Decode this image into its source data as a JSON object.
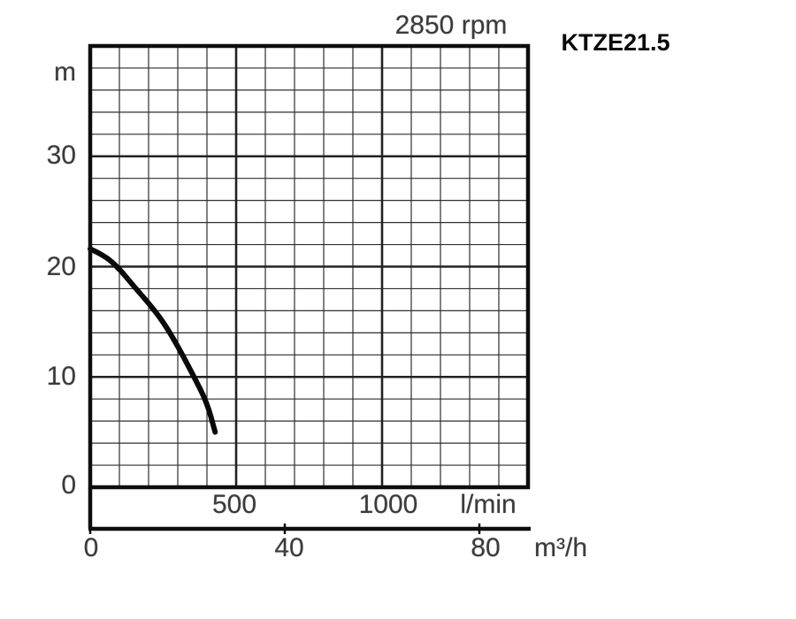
{
  "chart_data": {
    "type": "line",
    "title": "2850 rpm",
    "series_label": "KTZE21.5",
    "x_axis_primary": {
      "unit": "l/min",
      "min": 0,
      "max": 1500,
      "minor_step": 100,
      "major_tick_values": [
        500,
        1000
      ],
      "tick_labels": [
        "500",
        "1000"
      ]
    },
    "x_axis_secondary": {
      "unit": "m³/h",
      "tick_values": [
        0,
        40,
        80
      ],
      "tick_labels": [
        "0",
        "40",
        "80"
      ]
    },
    "y_axis": {
      "unit": "m",
      "min": 0,
      "max": 40,
      "minor_step": 2,
      "major_tick_values": [
        10,
        20,
        30
      ],
      "tick_labels": [
        "0",
        "10",
        "20",
        "30"
      ]
    },
    "grid": true,
    "legend_position": "none",
    "curve": {
      "name": "head-flow-curve",
      "x_unit": "l/min",
      "y_unit": "m",
      "points": [
        [
          0,
          21.6
        ],
        [
          50,
          21.0
        ],
        [
          100,
          19.8
        ],
        [
          150,
          18.2
        ],
        [
          200,
          16.7
        ],
        [
          250,
          15.0
        ],
        [
          300,
          12.8
        ],
        [
          350,
          10.3
        ],
        [
          400,
          7.7
        ],
        [
          428,
          5.0
        ]
      ]
    },
    "colors": {
      "curve": "#0a0a0a",
      "border": "#0d0d0d",
      "grid_major": "#222222",
      "grid_minor": "#2e2e2e",
      "text": "#3b3b3b"
    }
  }
}
